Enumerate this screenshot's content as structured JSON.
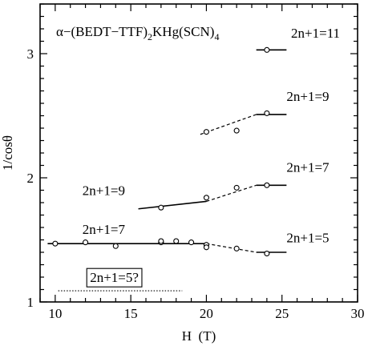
{
  "chart_data": {
    "type": "scatter",
    "title": "α−(BEDT−TTF)",
    "title_sub1": "2",
    "title_mid": "KHg(SCN)",
    "title_sub2": "4",
    "xlabel": "H  (T)",
    "ylabel": "1/cosθ",
    "xlim": [
      9,
      30
    ],
    "ylim": [
      1,
      3.4
    ],
    "xticks": [
      10,
      15,
      20,
      25,
      30
    ],
    "yticks": [
      1,
      2,
      3
    ],
    "grid": false,
    "points": [
      {
        "x": 10,
        "y": 1.47
      },
      {
        "x": 12,
        "y": 1.48
      },
      {
        "x": 14,
        "y": 1.45
      },
      {
        "x": 17,
        "y": 1.48
      },
      {
        "x": 17,
        "y": 1.49
      },
      {
        "x": 18,
        "y": 1.49
      },
      {
        "x": 19,
        "y": 1.48
      },
      {
        "x": 20,
        "y": 1.46
      },
      {
        "x": 20,
        "y": 1.44
      },
      {
        "x": 22,
        "y": 1.43
      },
      {
        "x": 24,
        "y": 1.39
      },
      {
        "x": 17,
        "y": 1.76
      },
      {
        "x": 20,
        "y": 1.84
      },
      {
        "x": 22,
        "y": 1.92
      },
      {
        "x": 24,
        "y": 1.94
      },
      {
        "x": 20,
        "y": 2.37
      },
      {
        "x": 22,
        "y": 2.38
      },
      {
        "x": 24,
        "y": 2.52
      },
      {
        "x": 24,
        "y": 3.03
      }
    ],
    "lines": [
      {
        "style": "solid",
        "x": [
          9.5,
          20
        ],
        "y": [
          1.47,
          1.47
        ]
      },
      {
        "style": "dashed",
        "x": [
          20,
          23.3
        ],
        "y": [
          1.47,
          1.4
        ]
      },
      {
        "style": "solid",
        "x": [
          23.3,
          25.3
        ],
        "y": [
          1.4,
          1.4
        ]
      },
      {
        "style": "solid",
        "x": [
          15.5,
          20
        ],
        "y": [
          1.75,
          1.81
        ]
      },
      {
        "style": "dashed",
        "x": [
          20,
          23.3
        ],
        "y": [
          1.81,
          1.94
        ]
      },
      {
        "style": "solid",
        "x": [
          23.3,
          25.3
        ],
        "y": [
          1.94,
          1.94
        ]
      },
      {
        "style": "dashed",
        "x": [
          19.6,
          23.3
        ],
        "y": [
          2.35,
          2.51
        ]
      },
      {
        "style": "solid",
        "x": [
          23.3,
          25.3
        ],
        "y": [
          2.51,
          2.51
        ]
      },
      {
        "style": "solid",
        "x": [
          23.3,
          25.3
        ],
        "y": [
          3.03,
          3.03
        ]
      },
      {
        "style": "dotted",
        "x": [
          10.2,
          18.4
        ],
        "y": [
          1.09,
          1.09
        ]
      }
    ],
    "annotations": [
      {
        "text": "2n+1=11",
        "x": 25.6,
        "y": 3.13,
        "boxed": false
      },
      {
        "text": "2n+1=9",
        "x": 25.3,
        "y": 2.62,
        "boxed": false
      },
      {
        "text": "2n+1=7",
        "x": 25.3,
        "y": 2.05,
        "boxed": false
      },
      {
        "text": "2n+1=9",
        "x": 11.8,
        "y": 1.86,
        "boxed": false
      },
      {
        "text": "2n+1=7",
        "x": 11.8,
        "y": 1.55,
        "boxed": false
      },
      {
        "text": "2n+1=5",
        "x": 25.3,
        "y": 1.48,
        "boxed": false
      },
      {
        "text": "2n+1=5?",
        "x": 12.3,
        "y": 1.16,
        "boxed": true
      }
    ]
  }
}
